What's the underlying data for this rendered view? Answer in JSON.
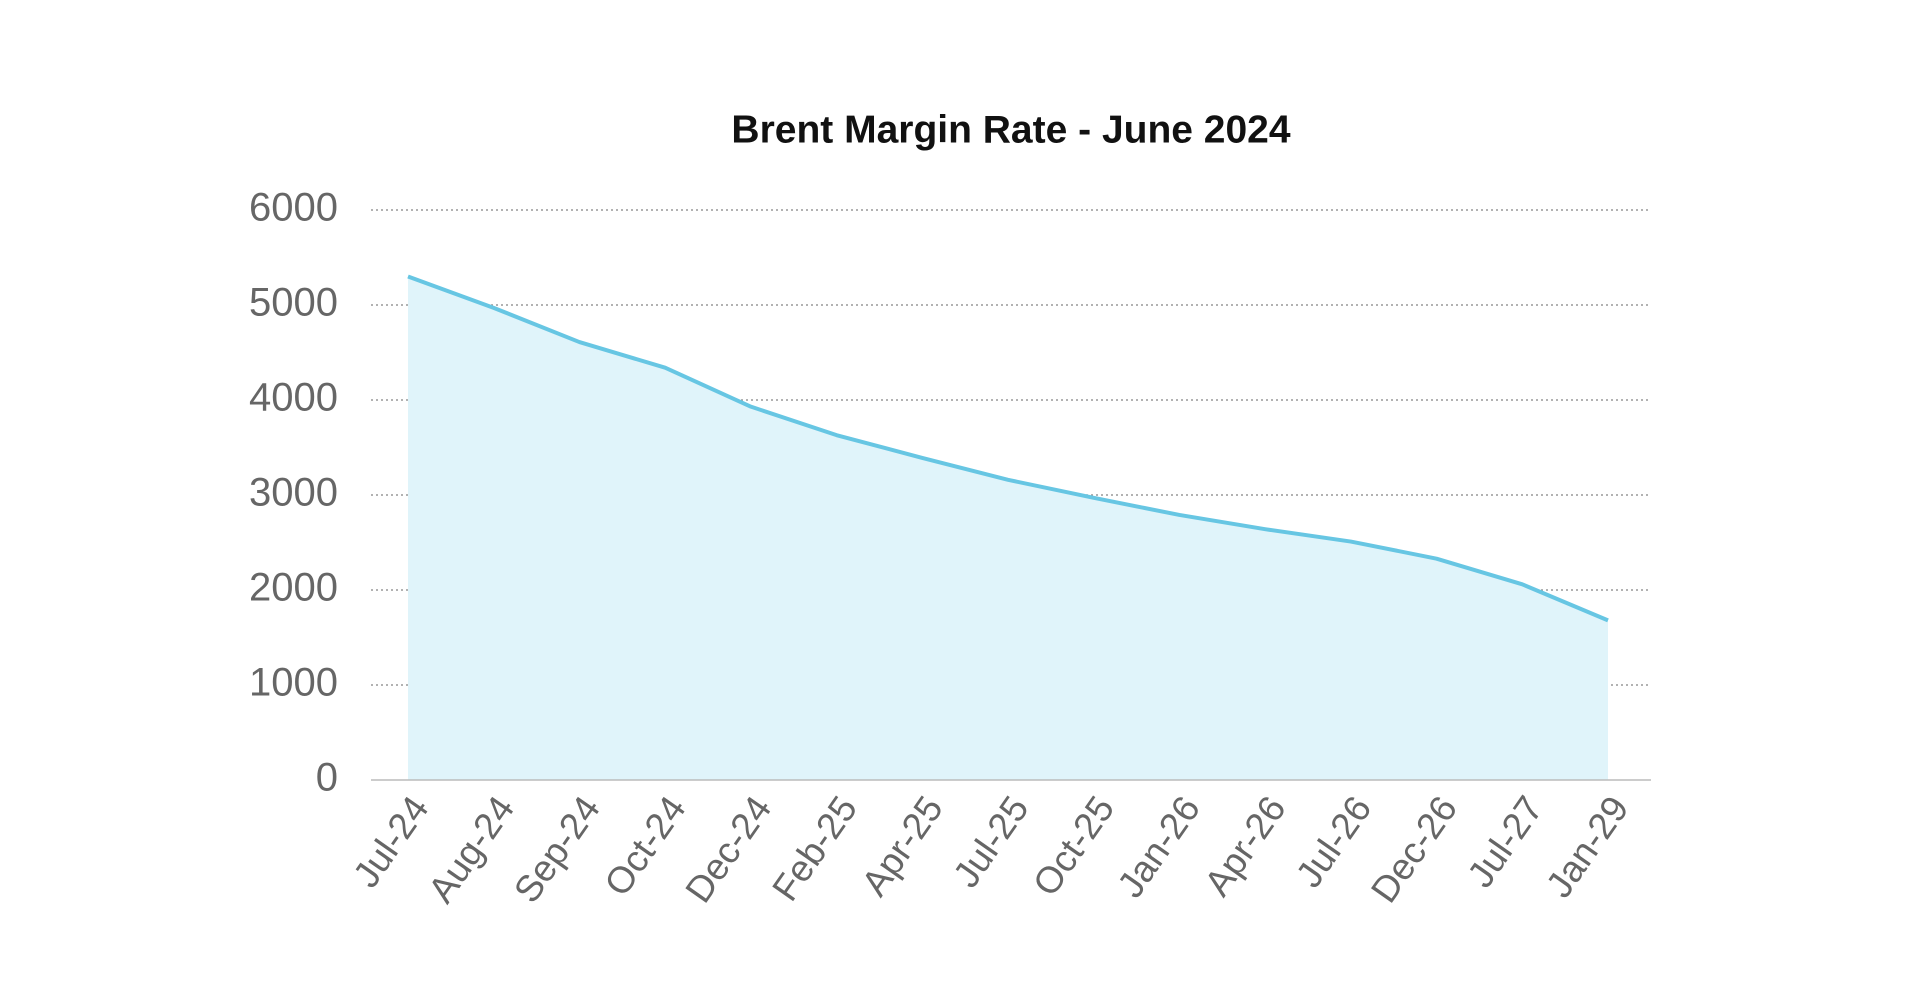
{
  "chart_data": {
    "type": "area",
    "title": "Brent Margin Rate - June 2024",
    "categories": [
      "Jul-24",
      "Aug-24",
      "Sep-24",
      "Oct-24",
      "Dec-24",
      "Feb-25",
      "Apr-25",
      "Jul-25",
      "Oct-25",
      "Jan-26",
      "Apr-26",
      "Jul-26",
      "Dec-26",
      "Jul-27",
      "Jan-29"
    ],
    "values": [
      5300,
      4970,
      4610,
      4340,
      3930,
      3630,
      3390,
      3160,
      2970,
      2790,
      2640,
      2510,
      2330,
      2060,
      1680
    ],
    "color": "#67c6e3",
    "fill_color": "#e0f4fa",
    "ylim": [
      0,
      6000
    ],
    "yticks": [
      0,
      1000,
      2000,
      3000,
      4000,
      5000,
      6000
    ],
    "grid": true
  }
}
